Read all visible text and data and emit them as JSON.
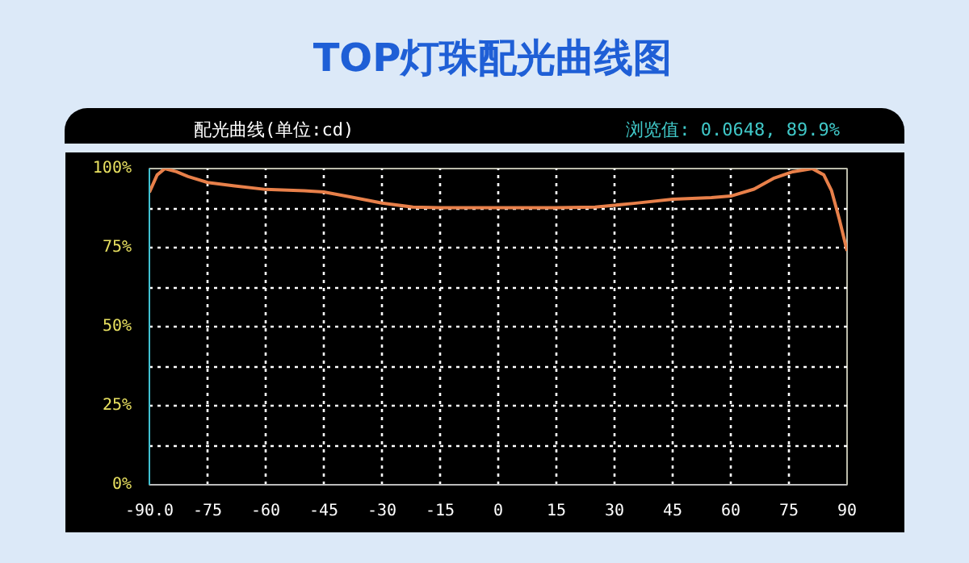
{
  "chart_data": {
    "type": "line",
    "title": "TOP灯珠配光曲线图",
    "annotations": [
      "配光曲线(单位:cd)",
      "浏览值: 0.0648, 89.9%"
    ],
    "x": [
      -90,
      -88,
      -86,
      -83,
      -80,
      -75,
      -68,
      -60,
      -50,
      -45,
      -38,
      -30,
      -22,
      -15,
      0,
      15,
      25,
      30,
      35,
      45,
      55,
      60,
      66,
      71,
      76,
      81,
      84,
      86,
      88,
      90
    ],
    "series": [
      {
        "color": "#e8804a",
        "values": [
          92.5,
          98,
          100,
          99,
          97.5,
          95.6,
          94.5,
          93.4,
          93,
          92.6,
          91,
          89.1,
          87.8,
          87.6,
          87.6,
          87.6,
          87.8,
          88.4,
          89,
          90.3,
          90.8,
          91.3,
          93.5,
          96.9,
          99,
          100,
          98,
          93,
          84,
          74
        ]
      }
    ],
    "xlim": [
      -90,
      90
    ],
    "xticks": [
      {
        "value": -90,
        "label": "-90.0"
      },
      -75,
      -60,
      -45,
      -30,
      -15,
      0,
      15,
      30,
      45,
      60,
      75,
      90
    ],
    "ylim": [
      0,
      100
    ],
    "yticks": [
      {
        "value": 0,
        "label": "0%"
      },
      {
        "value": 12.5,
        "label": null
      },
      {
        "value": 25,
        "label": "25%"
      },
      {
        "value": 37.5,
        "label": null
      },
      {
        "value": 50,
        "label": "50%"
      },
      {
        "value": 62.5,
        "label": null
      },
      {
        "value": 75,
        "label": "75%"
      },
      {
        "value": 87.5,
        "label": null
      },
      {
        "value": 100,
        "label": "100%"
      }
    ],
    "grid": true,
    "line_style": "solid",
    "marker": "none"
  }
}
